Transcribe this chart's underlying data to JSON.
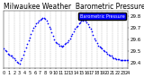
{
  "title": "Milwaukee Weather  Barometric Pressure  per Minute",
  "bg_color": "#ffffff",
  "plot_bg_color": "#ffffff",
  "dot_color": "#0000ff",
  "legend_color": "#0000ff",
  "legend_label": "Barometric Pressure",
  "grid_color": "#aaaaaa",
  "ylabel_color": "#000000",
  "xlabel_color": "#000000",
  "title_color": "#000000",
  "title_fontsize": 5.5,
  "tick_fontsize": 4,
  "ylim": [
    29.35,
    29.85
  ],
  "yticks": [
    29.4,
    29.5,
    29.6,
    29.7,
    29.8
  ],
  "xlim": [
    0,
    1440
  ],
  "xticks": [
    0,
    60,
    120,
    180,
    240,
    300,
    360,
    420,
    480,
    540,
    600,
    660,
    720,
    780,
    840,
    900,
    960,
    1020,
    1080,
    1140,
    1200,
    1260,
    1320,
    1380,
    1440
  ],
  "xtick_labels": [
    "0",
    "1",
    "2",
    "3",
    "4",
    "5",
    "6",
    "7",
    "8",
    "9",
    "10",
    "11",
    "12",
    "13",
    "14",
    "15",
    "16",
    "17",
    "18",
    "19",
    "20",
    "21",
    "22",
    "23",
    "24"
  ],
  "dot_size": 1.5,
  "data_x": [
    0,
    15,
    30,
    45,
    60,
    75,
    90,
    105,
    120,
    135,
    150,
    165,
    180,
    195,
    210,
    225,
    240,
    255,
    270,
    285,
    300,
    315,
    330,
    345,
    360,
    375,
    390,
    405,
    420,
    435,
    450,
    465,
    480,
    495,
    510,
    525,
    540,
    555,
    570,
    585,
    600,
    615,
    630,
    645,
    660,
    675,
    690,
    705,
    720,
    735,
    750,
    765,
    780,
    795,
    810,
    825,
    840,
    855,
    870,
    885,
    900,
    915,
    930,
    945,
    960,
    975,
    990,
    1005,
    1020,
    1035,
    1050,
    1065,
    1080,
    1095,
    1110,
    1125,
    1140,
    1155,
    1170,
    1185,
    1200,
    1215,
    1230,
    1245,
    1260,
    1275,
    1290,
    1305,
    1320,
    1335,
    1350,
    1365,
    1380,
    1395,
    1410,
    1425,
    1440
  ],
  "data_y": [
    29.52,
    29.51,
    29.5,
    29.48,
    29.47,
    29.46,
    29.46,
    29.45,
    29.44,
    29.42,
    29.41,
    29.4,
    29.39,
    29.42,
    29.44,
    29.47,
    29.5,
    29.53,
    29.56,
    29.59,
    29.62,
    29.65,
    29.68,
    29.7,
    29.72,
    29.74,
    29.75,
    29.76,
    29.77,
    29.78,
    29.79,
    29.79,
    29.78,
    29.76,
    29.74,
    29.71,
    29.69,
    29.66,
    29.63,
    29.6,
    29.58,
    29.57,
    29.56,
    29.55,
    29.55,
    29.54,
    29.55,
    29.56,
    29.57,
    29.58,
    29.59,
    29.61,
    29.63,
    29.65,
    29.67,
    29.69,
    29.71,
    29.72,
    29.74,
    29.75,
    29.76,
    29.76,
    29.77,
    29.76,
    29.75,
    29.73,
    29.71,
    29.69,
    29.67,
    29.64,
    29.61,
    29.59,
    29.57,
    29.55,
    29.54,
    29.53,
    29.52,
    29.51,
    29.5,
    29.49,
    29.48,
    29.47,
    29.46,
    29.46,
    29.45,
    29.44,
    29.44,
    29.43,
    29.43,
    29.43,
    29.42,
    29.42,
    29.42,
    29.42,
    29.42,
    29.42,
    29.42
  ]
}
